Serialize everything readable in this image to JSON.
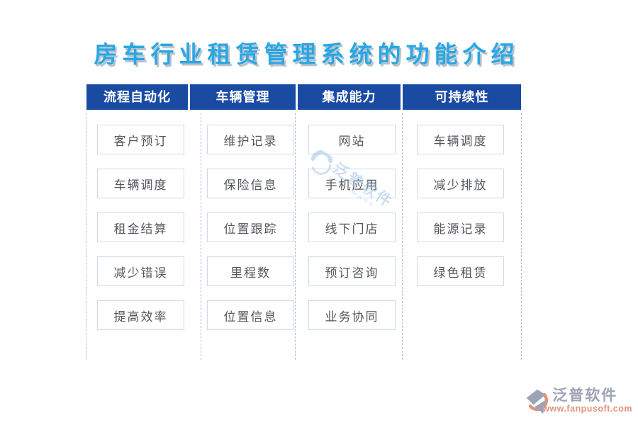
{
  "title": "房车行业租赁管理系统的功能介绍",
  "columns": [
    {
      "header": "流程自动化",
      "items": [
        "客户预订",
        "车辆调度",
        "租金结算",
        "减少错误",
        "提高效率"
      ]
    },
    {
      "header": "车辆管理",
      "items": [
        "维护记录",
        "保险信息",
        "位置跟踪",
        "里程数",
        "位置信息"
      ]
    },
    {
      "header": "集成能力",
      "items": [
        "网站",
        "手机应用",
        "线下门店",
        "预订咨询",
        "业务协同"
      ]
    },
    {
      "header": "可持续性",
      "items": [
        "车辆调度",
        "减少排放",
        "能源记录",
        "绿色租赁"
      ]
    }
  ],
  "watermark": {
    "brand": "泛普软件",
    "subtext": "SOFTWARE"
  },
  "footer": {
    "brand": "泛普软件",
    "url": "www.fanpusoft.com"
  },
  "colors": {
    "title": "#29A7E4",
    "header_bg": "#1A4BA2",
    "header_text": "#FFFFFF",
    "box_border": "#CCD9EC",
    "box_text": "#53565C",
    "separator": "#A7BEE2",
    "watermark": "#9FBFE5",
    "footer_brand": "#9CA4B6",
    "footer_url": "#E2937E"
  }
}
